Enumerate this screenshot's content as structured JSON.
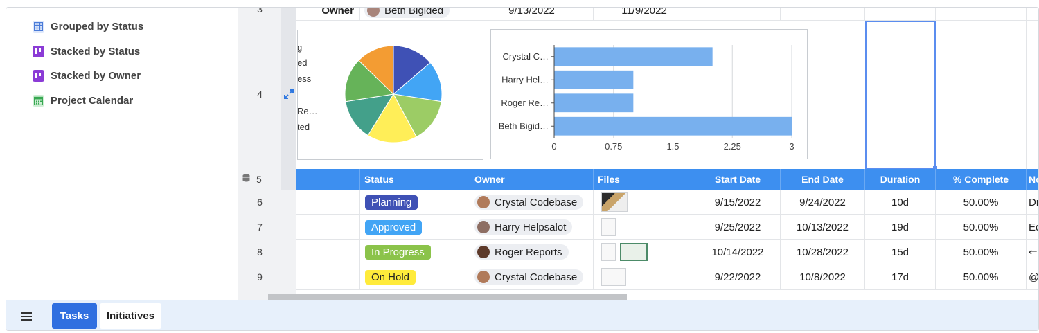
{
  "views": [
    {
      "label": "Grouped by Status",
      "icon": "grid-view-icon",
      "color": "#4a7bd8"
    },
    {
      "label": "Stacked by Status",
      "icon": "kanban-icon",
      "color": "#8b3bd6"
    },
    {
      "label": "Stacked by Owner",
      "icon": "kanban-icon",
      "color": "#8b3bd6"
    },
    {
      "label": "Project Calendar",
      "icon": "calendar-icon",
      "color": "#38a852"
    }
  ],
  "top_row": {
    "row_number": "3",
    "label": "Owner",
    "owner": "Beth Bigided",
    "start": "9/13/2022",
    "end": "11/9/2022"
  },
  "chart_row": {
    "row_number": "4"
  },
  "pie_legend": [
    "g",
    "ed",
    "ess",
    "Re…",
    "ted"
  ],
  "chart_data": [
    {
      "type": "pie",
      "values": [
        14,
        14,
        15,
        17,
        14,
        15,
        13
      ],
      "colors": [
        "#3f51b5",
        "#42a5f5",
        "#9ccc65",
        "#ffee58",
        "#43a08a",
        "#66b359",
        "#f39c33"
      ]
    },
    {
      "type": "bar",
      "orientation": "horizontal",
      "categories": [
        "Crystal C…",
        "Harry Hel…",
        "Roger Re…",
        "Beth Bigid…"
      ],
      "values": [
        2,
        1,
        1,
        3
      ],
      "xlim": [
        0,
        3
      ],
      "ticks": [
        "0",
        "0.75",
        "1.5",
        "2.25",
        "3"
      ],
      "bar_color": "#78b0ee",
      "grid": true
    }
  ],
  "header": {
    "row_number": "5",
    "columns": [
      "Status",
      "Owner",
      "Files",
      "Start Date",
      "End Date",
      "Duration",
      "% Complete",
      "No"
    ]
  },
  "rows": [
    {
      "num": "6",
      "status": "Planning",
      "status_color": "#3f51b5",
      "status_text_color": "#ffffff",
      "owner": "Crystal Codebase",
      "avatar_color": "#b07a5a",
      "files": [
        "photo-thumb"
      ],
      "start": "9/15/2022",
      "end": "9/24/2022",
      "duration": "10d",
      "complete": "50.00%",
      "note": "Dra"
    },
    {
      "num": "7",
      "status": "Approved",
      "status_color": "#42a5f5",
      "status_text_color": "#ffffff",
      "owner": "Harry Helpsalot",
      "avatar_color": "#8d6e63",
      "files": [
        "doc-thumb"
      ],
      "start": "9/25/2022",
      "end": "10/13/2022",
      "duration": "19d",
      "complete": "50.00%",
      "note": "Edi"
    },
    {
      "num": "8",
      "status": "In Progress",
      "status_color": "#8bc34a",
      "status_text_color": "#ffffff",
      "owner": "Roger Reports",
      "avatar_color": "#5d3a2a",
      "files": [
        "doc-thumb",
        "certificate-thumb"
      ],
      "start": "10/14/2022",
      "end": "10/28/2022",
      "duration": "15d",
      "complete": "50.00%",
      "note": "⇐"
    },
    {
      "num": "9",
      "status": "On Hold",
      "status_color": "#ffeb3b",
      "status_text_color": "#222222",
      "owner": "Crystal Codebase",
      "avatar_color": "#b07a5a",
      "files": [
        "doc-wide-thumb"
      ],
      "start": "9/22/2022",
      "end": "10/8/2022",
      "duration": "17d",
      "complete": "50.00%",
      "note": "@n"
    }
  ],
  "bottom": {
    "menu_icon": "hamburger-icon",
    "tabs": [
      {
        "label": "Tasks",
        "active": true
      },
      {
        "label": "Initiatives",
        "active": false
      }
    ]
  }
}
